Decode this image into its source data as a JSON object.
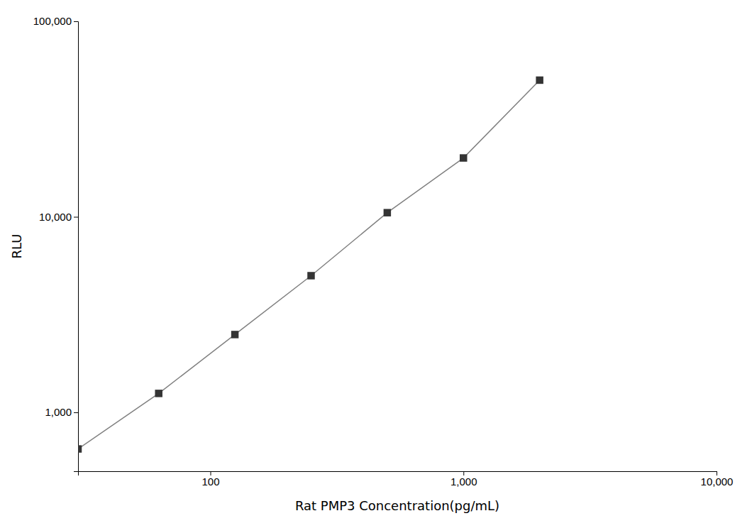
{
  "chart_data": {
    "type": "line",
    "xlabel": "Rat PMP3 Concentration(pg/mL)",
    "ylabel": "RLU",
    "x": [
      30,
      62.5,
      125,
      250,
      500,
      1000,
      2000
    ],
    "values": [
      650,
      1250,
      2500,
      5000,
      10500,
      20000,
      50000
    ],
    "color": "#808080",
    "marker": "square",
    "log": true,
    "grid": false,
    "xlim": [
      30,
      10000
    ],
    "ylim": [
      500,
      100000
    ],
    "xticks": [
      {
        "value": 100,
        "label": "100"
      },
      {
        "value": 1000,
        "label": "1,000"
      },
      {
        "value": 10000,
        "label": "10,000"
      }
    ],
    "yticks": [
      {
        "value": 1000,
        "label": "1,000"
      },
      {
        "value": 10000,
        "label": "10,000"
      },
      {
        "value": 100000,
        "label": "100,000"
      }
    ]
  }
}
